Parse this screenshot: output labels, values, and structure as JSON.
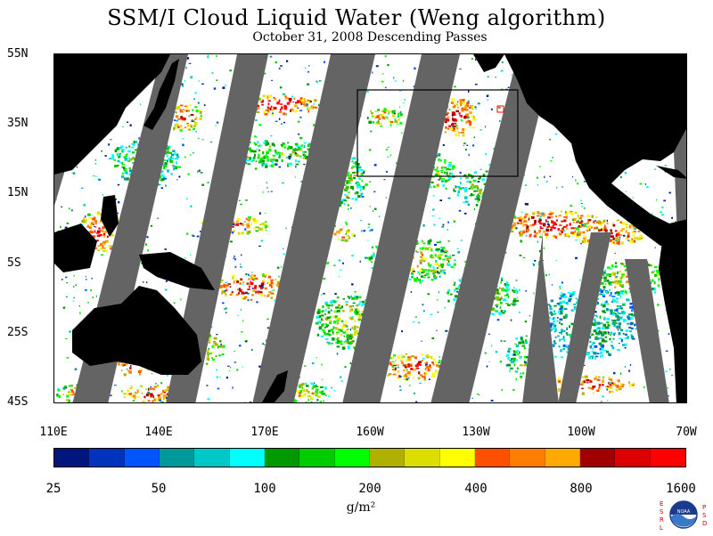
{
  "title": "SSM/I Cloud Liquid Water (Weng algorithm)",
  "subtitle": "October 31, 2008  Descending Passes",
  "axes": {
    "lat_labels": [
      "55N",
      "35N",
      "15N",
      "5S",
      "25S",
      "45S"
    ],
    "lon_labels": [
      "110E",
      "140E",
      "170E",
      "160W",
      "130W",
      "100W",
      "70W"
    ]
  },
  "colorbar": {
    "colors": [
      "#00157d",
      "#0033bb",
      "#0055ff",
      "#00999b",
      "#00c8c8",
      "#00ffff",
      "#009900",
      "#00cc00",
      "#00ff00",
      "#b0b000",
      "#dddd00",
      "#ffff00",
      "#ff5000",
      "#ff7d00",
      "#ffaa00",
      "#a00000",
      "#dd0000",
      "#ff0000"
    ],
    "labels": [
      "25",
      "50",
      "100",
      "200",
      "400",
      "800",
      "1600"
    ],
    "units": "g/m²"
  },
  "logo": {
    "left_letters": "ESRL",
    "right_letters": "PSD",
    "center_text": "NOAA"
  },
  "map_colors": {
    "land": "#000000",
    "no_data_swath": "#646464",
    "ocean_clear": "#ffffff"
  }
}
